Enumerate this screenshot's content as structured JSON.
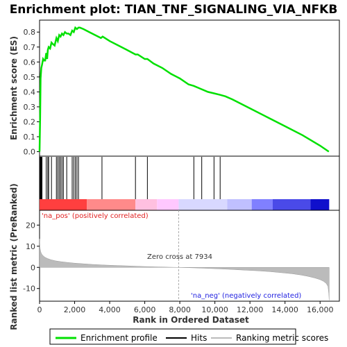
{
  "chart_data": {
    "type": "line",
    "title": "Enrichment plot: TIAN_TNF_SIGNALING_VIA_NFKB",
    "top_panel": {
      "ylabel": "Enrichment score (ES)",
      "ylim": [
        -0.03,
        0.88
      ],
      "yticks": [
        "0.0",
        "0.1",
        "0.2",
        "0.3",
        "0.4",
        "0.5",
        "0.6",
        "0.7",
        "0.8"
      ],
      "ytick_values": [
        0.0,
        0.1,
        0.2,
        0.3,
        0.4,
        0.5,
        0.6,
        0.7,
        0.8
      ],
      "series": [
        {
          "name": "Enrichment profile",
          "color": "#00e000",
          "x": [
            0,
            30,
            60,
            100,
            140,
            200,
            260,
            320,
            380,
            430,
            470,
            520,
            600,
            680,
            760,
            860,
            960,
            1040,
            1120,
            1200,
            1280,
            1360,
            1450,
            1550,
            1650,
            1760,
            1860,
            1950,
            2040,
            2130,
            2220,
            2300,
            2500,
            3000,
            3500,
            3600,
            4000,
            4500,
            5000,
            5470,
            5600,
            6000,
            6150,
            6500,
            7000,
            7500,
            8000,
            8500,
            8800,
            9200,
            9600,
            9950,
            10300,
            10600,
            11000,
            12000,
            13000,
            14000,
            15000,
            16000,
            16500
          ],
          "y": [
            0.0,
            0.22,
            0.49,
            0.56,
            0.58,
            0.62,
            0.61,
            0.61,
            0.66,
            0.62,
            0.68,
            0.7,
            0.69,
            0.73,
            0.72,
            0.71,
            0.76,
            0.74,
            0.78,
            0.77,
            0.79,
            0.78,
            0.8,
            0.79,
            0.79,
            0.78,
            0.81,
            0.8,
            0.83,
            0.82,
            0.83,
            0.83,
            0.82,
            0.79,
            0.76,
            0.77,
            0.74,
            0.71,
            0.68,
            0.65,
            0.65,
            0.62,
            0.62,
            0.59,
            0.56,
            0.52,
            0.49,
            0.45,
            0.44,
            0.42,
            0.4,
            0.39,
            0.38,
            0.37,
            0.35,
            0.29,
            0.23,
            0.17,
            0.11,
            0.04,
            0.0
          ]
        }
      ]
    },
    "hits": {
      "name": "Hits",
      "positions": [
        30,
        60,
        100,
        140,
        380,
        470,
        520,
        680,
        960,
        1040,
        1120,
        1200,
        1280,
        1360,
        1550,
        1860,
        1950,
        2040,
        2130,
        2220,
        3560,
        5470,
        6150,
        8800,
        9250,
        9950,
        10300
      ]
    },
    "heat_bar": {
      "segments": [
        {
          "from": 0,
          "to": 2700,
          "color": "#ff3f3f"
        },
        {
          "from": 2700,
          "to": 5470,
          "color": "#ff8a8a"
        },
        {
          "from": 5470,
          "to": 6700,
          "color": "#ffc0e0"
        },
        {
          "from": 6700,
          "to": 7934,
          "color": "#ffc8ff"
        },
        {
          "from": 7934,
          "to": 10700,
          "color": "#d8d8ff"
        },
        {
          "from": 10700,
          "to": 12100,
          "color": "#c0c0ff"
        },
        {
          "from": 12100,
          "to": 13300,
          "color": "#8080ff"
        },
        {
          "from": 13300,
          "to": 15450,
          "color": "#4a4ae8"
        },
        {
          "from": 15450,
          "to": 16520,
          "color": "#1010cc"
        }
      ]
    },
    "bottom_panel": {
      "ylabel": "Ranked list metric (PreRanked)",
      "xlabel": "Rank in Ordered Dataset",
      "ylim": [
        -16,
        27
      ],
      "yticks": [
        "20",
        "10",
        "0",
        "-10"
      ],
      "ytick_values": [
        20,
        10,
        0,
        -10
      ],
      "xlim": [
        0,
        17100
      ],
      "xticks": [
        "0",
        "2,000",
        "4,000",
        "6,000",
        "8,000",
        "10,000",
        "12,000",
        "14,000",
        "16,000"
      ],
      "xtick_values": [
        0,
        2000,
        4000,
        6000,
        8000,
        10000,
        12000,
        14000,
        16000
      ],
      "metric_curve": {
        "name": "Ranking metric scores",
        "x": [
          0,
          20,
          60,
          120,
          200,
          300,
          450,
          650,
          900,
          1200,
          1600,
          2000,
          2500,
          3000,
          3600,
          4300,
          5000,
          5800,
          6600,
          7400,
          7934,
          8500,
          9200,
          10000,
          10800,
          11600,
          12400,
          13100,
          13800,
          14400,
          14900,
          15300,
          15700,
          16000,
          16200,
          16350,
          16450,
          16500,
          16520
        ],
        "y": [
          13.5,
          9.5,
          7.5,
          6.3,
          5.5,
          4.8,
          4.2,
          3.6,
          3.1,
          2.7,
          2.3,
          2.0,
          1.7,
          1.4,
          1.15,
          0.9,
          0.7,
          0.45,
          0.25,
          0.08,
          0.0,
          -0.15,
          -0.35,
          -0.6,
          -0.9,
          -1.25,
          -1.6,
          -2.0,
          -2.5,
          -3.0,
          -3.6,
          -4.2,
          -5.0,
          -5.8,
          -6.6,
          -7.6,
          -9.0,
          -12.5,
          -15.5
        ]
      },
      "zero_cross_label": "Zero cross at 7934",
      "zero_cross_x": 7934,
      "pos_label": "'na_pos' (positively correlated)",
      "neg_label": "'na_neg' (negatively correlated)"
    },
    "legend": [
      {
        "label": "Enrichment profile",
        "color": "#00e000"
      },
      {
        "label": "Hits",
        "color": "#000000"
      },
      {
        "label": "Ranking metric scores",
        "color": "#bbbbbb"
      }
    ],
    "colors": {
      "pos_label": "#e02020",
      "neg_label": "#2020e0"
    }
  }
}
